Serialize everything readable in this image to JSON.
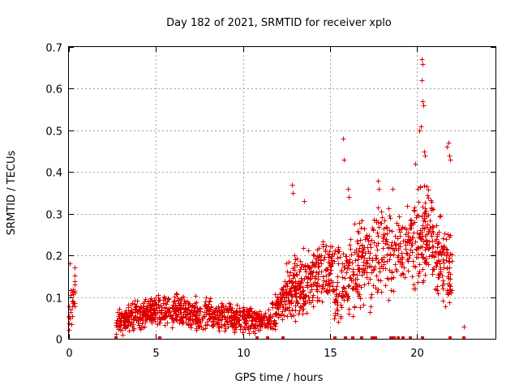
{
  "chart_data": {
    "type": "scatter",
    "title": "Day 182 of 2021, SRMTID for receiver xplo",
    "xlabel": "GPS time / hours",
    "ylabel": "SRMTID / TECUs",
    "xlim": [
      0,
      24.5
    ],
    "ylim": [
      0,
      0.7
    ],
    "xticks": [
      0,
      5,
      10,
      15,
      20
    ],
    "yticks": [
      0,
      0.1,
      0.2,
      0.3,
      0.4,
      0.5,
      0.6,
      0.7
    ],
    "grid": true,
    "marker": "plus",
    "color": "#e00000",
    "segments": [
      {
        "x": [
          0.0,
          0.35
        ],
        "base": [
          0.05,
          0.13
        ],
        "spread": 0.06,
        "n": 30
      },
      {
        "x": [
          2.7,
          5.0
        ],
        "base": [
          0.04,
          0.07
        ],
        "spread": 0.04,
        "n": 220
      },
      {
        "x": [
          5.0,
          8.0
        ],
        "base": [
          0.07,
          0.06
        ],
        "spread": 0.045,
        "n": 260
      },
      {
        "x": [
          8.0,
          10.5
        ],
        "base": [
          0.06,
          0.045
        ],
        "spread": 0.04,
        "n": 220
      },
      {
        "x": [
          10.5,
          11.6
        ],
        "base": [
          0.04,
          0.045
        ],
        "spread": 0.03,
        "n": 90
      },
      {
        "x": [
          11.6,
          12.5
        ],
        "base": [
          0.05,
          0.1
        ],
        "spread": 0.05,
        "n": 80
      },
      {
        "x": [
          12.5,
          14.0
        ],
        "base": [
          0.12,
          0.14
        ],
        "spread": 0.09,
        "n": 170
      },
      {
        "x": [
          14.0,
          15.2
        ],
        "base": [
          0.15,
          0.17
        ],
        "spread": 0.08,
        "n": 110
      },
      {
        "x": [
          15.2,
          16.5
        ],
        "base": [
          0.12,
          0.17
        ],
        "spread": 0.12,
        "n": 110
      },
      {
        "x": [
          16.5,
          18.5
        ],
        "base": [
          0.17,
          0.22
        ],
        "spread": 0.13,
        "n": 170
      },
      {
        "x": [
          18.5,
          19.7
        ],
        "base": [
          0.2,
          0.24
        ],
        "spread": 0.1,
        "n": 90
      },
      {
        "x": [
          19.7,
          21.0
        ],
        "base": [
          0.24,
          0.25
        ],
        "spread": 0.14,
        "n": 140
      },
      {
        "x": [
          21.0,
          22.0
        ],
        "base": [
          0.2,
          0.15
        ],
        "spread": 0.12,
        "n": 100
      }
    ],
    "peaks": [
      {
        "x": 0.05,
        "y": 0.18
      },
      {
        "x": 12.8,
        "y": 0.37
      },
      {
        "x": 12.85,
        "y": 0.35
      },
      {
        "x": 13.5,
        "y": 0.33
      },
      {
        "x": 15.75,
        "y": 0.48
      },
      {
        "x": 15.8,
        "y": 0.43
      },
      {
        "x": 16.0,
        "y": 0.36
      },
      {
        "x": 16.05,
        "y": 0.34
      },
      {
        "x": 17.75,
        "y": 0.38
      },
      {
        "x": 17.8,
        "y": 0.36
      },
      {
        "x": 18.6,
        "y": 0.36
      },
      {
        "x": 19.9,
        "y": 0.42
      },
      {
        "x": 20.1,
        "y": 0.5
      },
      {
        "x": 20.2,
        "y": 0.51
      },
      {
        "x": 20.25,
        "y": 0.67
      },
      {
        "x": 20.3,
        "y": 0.66
      },
      {
        "x": 20.28,
        "y": 0.62
      },
      {
        "x": 20.32,
        "y": 0.57
      },
      {
        "x": 20.35,
        "y": 0.56
      },
      {
        "x": 20.4,
        "y": 0.45
      },
      {
        "x": 20.45,
        "y": 0.44
      },
      {
        "x": 21.8,
        "y": 0.47
      },
      {
        "x": 21.85,
        "y": 0.44
      },
      {
        "x": 21.9,
        "y": 0.43
      },
      {
        "x": 21.7,
        "y": 0.46
      },
      {
        "x": 22.7,
        "y": 0.03
      }
    ],
    "zero_points": [
      2.7,
      5.2,
      10.8,
      11.4,
      12.3,
      15.3,
      15.9,
      16.3,
      16.8,
      17.4,
      17.6,
      18.5,
      18.7,
      18.9,
      19.2,
      19.6,
      20.3,
      21.9,
      22.7
    ]
  }
}
